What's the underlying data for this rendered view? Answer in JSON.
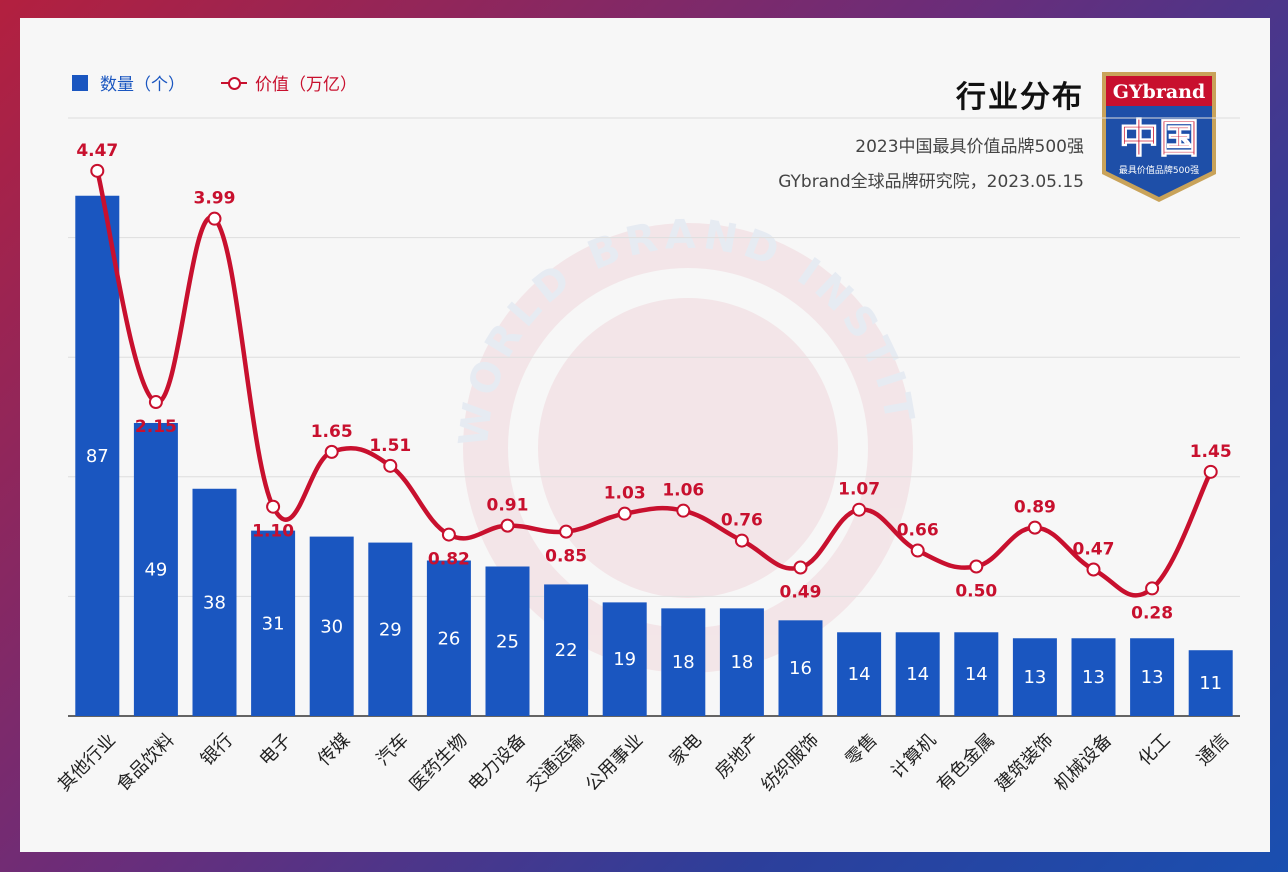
{
  "legend": {
    "bar_label": "数量（个）",
    "line_label": "价值（万亿）"
  },
  "title": "行业分布",
  "subtitle": "2023中国最具价值品牌500强",
  "source": "GYbrand全球品牌研究院，2023.05.15",
  "logo": {
    "top_text": "GYbrand",
    "main_text": "中国",
    "bottom_text": "最具价值品牌500强"
  },
  "watermark": "WORLD BRAND INSTITUTE",
  "colors": {
    "bar": "#1a56c0",
    "line": "#c8102e",
    "logo_red": "#c8102e",
    "logo_blue": "#1e4fa8",
    "logo_gold": "#c9a35a"
  },
  "chart_data": {
    "type": "bar",
    "categories": [
      "其他行业",
      "食品饮料",
      "银行",
      "电子",
      "传媒",
      "汽车",
      "医药生物",
      "电力设备",
      "交通运输",
      "公用事业",
      "家电",
      "房地产",
      "纺织服饰",
      "零售",
      "计算机",
      "有色金属",
      "建筑装饰",
      "机械设备",
      "化工",
      "通信"
    ],
    "series": [
      {
        "name": "数量（个）",
        "type": "bar",
        "values": [
          87,
          49,
          38,
          31,
          30,
          29,
          26,
          25,
          22,
          19,
          18,
          18,
          16,
          14,
          14,
          14,
          13,
          13,
          13,
          11
        ]
      },
      {
        "name": "价值（万亿）",
        "type": "line",
        "values": [
          4.47,
          2.15,
          3.99,
          1.1,
          1.65,
          1.51,
          0.82,
          0.91,
          0.85,
          1.03,
          1.06,
          0.76,
          0.49,
          1.07,
          0.66,
          0.5,
          0.89,
          0.47,
          0.28,
          1.45
        ],
        "labels": [
          "4.47",
          "2.15",
          "3.99",
          "1.10",
          "1.65",
          "1.51",
          "0.82",
          "0.91",
          "0.85",
          "1.03",
          "1.06",
          "0.76",
          "0.49",
          "1.07",
          "0.66",
          "0.50",
          "0.89",
          "0.47",
          "0.28",
          "1.45"
        ]
      }
    ],
    "bar_ylim": [
      0,
      100
    ],
    "line_ylim": [
      -1.0,
      5.0
    ],
    "grid": true,
    "legend_position": "top-left"
  }
}
